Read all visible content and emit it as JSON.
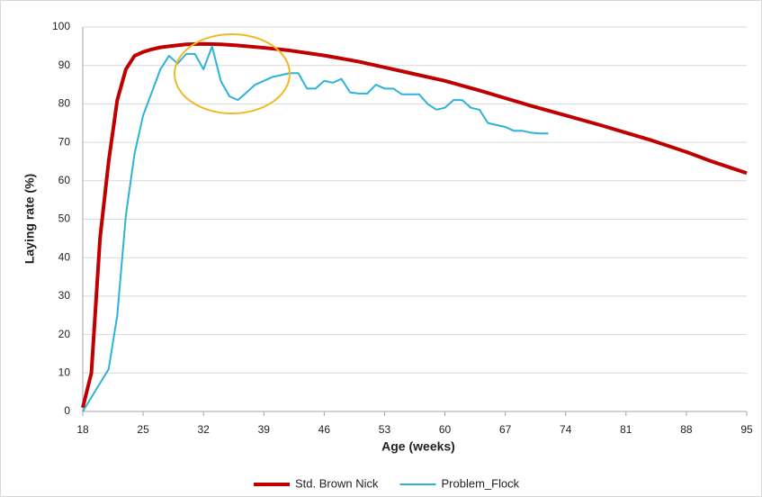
{
  "chart_data": {
    "type": "line",
    "x_label": "Age (weeks)",
    "y_label": "Laying rate (%)",
    "xlim": [
      18,
      95
    ],
    "xticks": [
      18,
      25,
      32,
      39,
      46,
      53,
      60,
      67,
      74,
      81,
      88,
      95
    ],
    "ylim": [
      0,
      100
    ],
    "yticks": [
      0,
      10,
      20,
      30,
      40,
      50,
      60,
      70,
      80,
      90,
      100
    ],
    "grid": true,
    "legend": "bottom",
    "series": [
      {
        "name": "Std. Brown Nick",
        "color": "#c00000",
        "width": 4,
        "x": [
          18,
          19,
          20,
          21,
          22,
          23,
          24,
          25,
          26,
          27,
          28,
          30,
          32,
          34,
          36,
          39,
          42,
          46,
          50,
          53,
          56,
          60,
          64,
          67,
          70,
          74,
          78,
          81,
          84,
          88,
          91,
          95
        ],
        "values": [
          1,
          10,
          45,
          65,
          81,
          89,
          92.5,
          93.5,
          94.2,
          94.7,
          95,
          95.5,
          95.6,
          95.5,
          95.2,
          94.6,
          93.9,
          92.6,
          91,
          89.5,
          88,
          86,
          83.5,
          81.5,
          79.5,
          77,
          74.5,
          72.5,
          70.5,
          67.5,
          65,
          62
        ]
      },
      {
        "name": "Problem_Flock",
        "color": "#2bb3d9",
        "width": 2,
        "x": [
          18,
          21,
          22,
          23,
          24,
          25,
          26,
          27,
          28,
          29,
          30,
          31,
          32,
          33,
          34,
          35,
          36,
          37,
          38,
          39,
          40,
          41,
          42,
          43,
          44,
          45,
          46,
          47,
          48,
          49,
          50,
          51,
          52,
          53,
          54,
          55,
          56,
          57,
          58,
          59,
          60,
          61,
          62,
          63,
          64,
          65,
          66,
          67,
          68,
          69,
          70,
          71,
          72
        ],
        "values": [
          0,
          11,
          25,
          51,
          67,
          77,
          83,
          89,
          92.5,
          90.5,
          93,
          93,
          89,
          95,
          86,
          82,
          81,
          83,
          85,
          86,
          87,
          87.5,
          88,
          88,
          84,
          84,
          86,
          85.5,
          86.5,
          83,
          82.7,
          82.7,
          85,
          84,
          84,
          82.5,
          82.5,
          82.5,
          80,
          78.5,
          79,
          81,
          81,
          79,
          78.5,
          75,
          74.5,
          74,
          73,
          73,
          72.5,
          72.3,
          72.3
        ]
      }
    ]
  }
}
